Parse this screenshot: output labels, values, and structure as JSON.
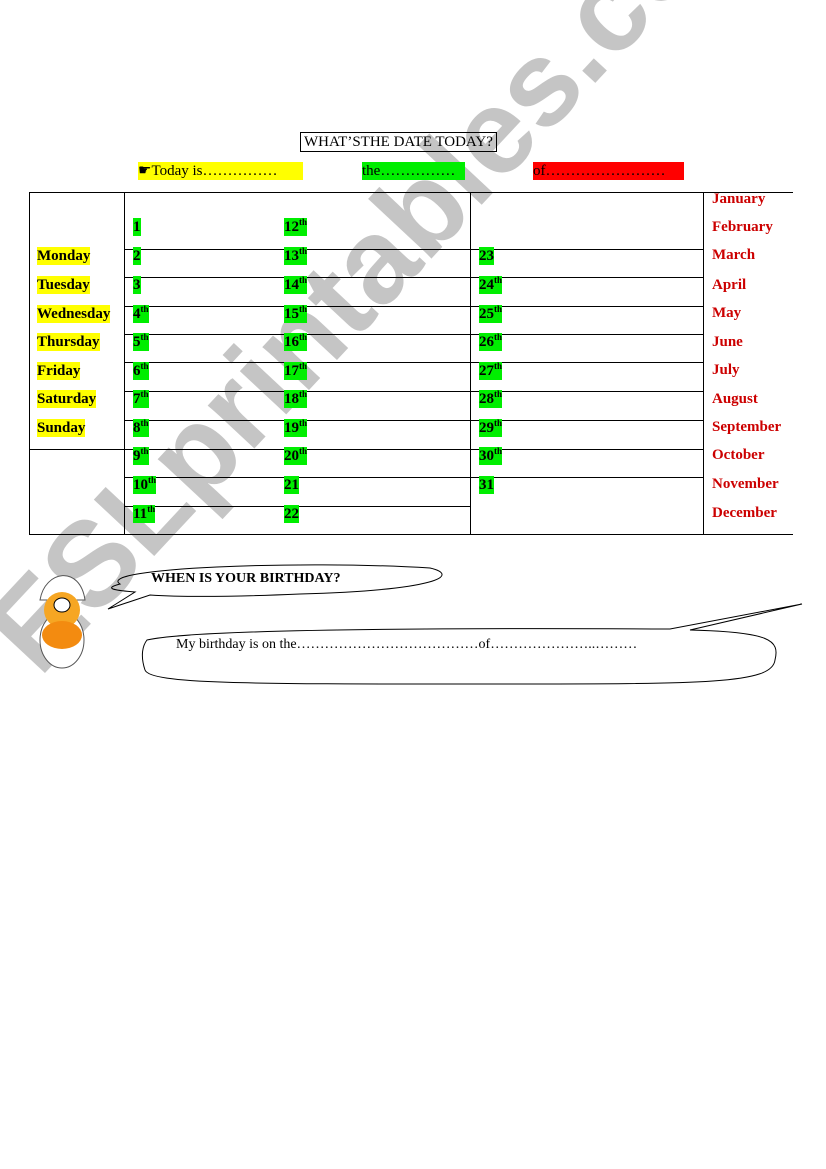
{
  "title": "WHAT’STHE DATE TODAY?",
  "prompts": {
    "today": "Today is……………",
    "the": "the……………",
    "of": "of……………………"
  },
  "days": [
    "Monday",
    "Tuesday",
    "Wednesday",
    "Thursday",
    "Friday",
    "Saturday",
    "Sunday"
  ],
  "numbers_col1": [
    {
      "n": "1",
      "s": ""
    },
    {
      "n": "2",
      "s": ""
    },
    {
      "n": "3",
      "s": ""
    },
    {
      "n": "4",
      "s": "th"
    },
    {
      "n": "5",
      "s": "th"
    },
    {
      "n": "6",
      "s": "th"
    },
    {
      "n": "7",
      "s": "th"
    },
    {
      "n": "8",
      "s": "th"
    },
    {
      "n": "9",
      "s": "th"
    },
    {
      "n": "10",
      "s": "th"
    },
    {
      "n": "11",
      "s": "th"
    }
  ],
  "numbers_col2": [
    {
      "n": "12",
      "s": "th"
    },
    {
      "n": "13",
      "s": "th"
    },
    {
      "n": "14",
      "s": "th"
    },
    {
      "n": "15",
      "s": "th"
    },
    {
      "n": "16",
      "s": "th"
    },
    {
      "n": "17",
      "s": "th"
    },
    {
      "n": "18",
      "s": "th"
    },
    {
      "n": "19",
      "s": "th"
    },
    {
      "n": "20",
      "s": "th"
    },
    {
      "n": "21",
      "s": ""
    },
    {
      "n": "22",
      "s": ""
    }
  ],
  "numbers_col3": [
    {
      "n": "23",
      "s": ""
    },
    {
      "n": "24",
      "s": "th"
    },
    {
      "n": "25",
      "s": "th"
    },
    {
      "n": "26",
      "s": "th"
    },
    {
      "n": "27",
      "s": "th"
    },
    {
      "n": "28",
      "s": "th"
    },
    {
      "n": "29",
      "s": "th"
    },
    {
      "n": "30",
      "s": "th"
    },
    {
      "n": "31",
      "s": ""
    }
  ],
  "months": [
    "January",
    "February",
    "March",
    "April",
    "May",
    "June",
    "July",
    "August",
    "September",
    "October",
    "November",
    "December"
  ],
  "bubble_question": "WHEN IS YOUR BIRTHDAY?",
  "bubble_answer": "My birthday is on the…………………………………of…………………..………",
  "watermark": "ESLprintables.com",
  "colors": {
    "yellow": "#ffff00",
    "green": "#00ee00",
    "red": "#ff0000",
    "month_text": "#cc0000"
  }
}
